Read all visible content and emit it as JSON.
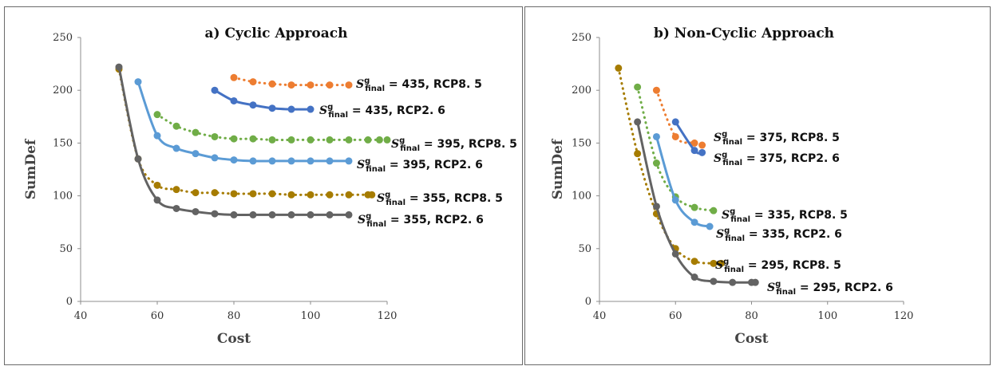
{
  "chart_data": [
    {
      "type": "line",
      "title": "a) Cyclic Approach",
      "xlabel": "Cost",
      "ylabel": "SumDef",
      "xlim": [
        40,
        120
      ],
      "ylim": [
        0,
        250
      ],
      "xticks": [
        40,
        60,
        80,
        100,
        120
      ],
      "yticks": [
        0,
        50,
        100,
        150,
        200,
        250
      ],
      "grid": false,
      "legend": "none",
      "series": [
        {
          "name": "S_final^g = 435, RCP8.5",
          "label_s": "S",
          "label_sup": "g",
          "label_sub": "final",
          "label_rest": " = 435, RCP8. 5",
          "color": "#ED7D31",
          "style": "dotted",
          "x": [
            80,
            85,
            90,
            95,
            100,
            105,
            110
          ],
          "y": [
            212,
            208,
            206,
            205,
            205,
            205,
            205
          ]
        },
        {
          "name": "S_final^g = 435, RCP2.6",
          "label_s": "S",
          "label_sup": "g",
          "label_sub": "final",
          "label_rest": " = 435, RCP2. 6",
          "color": "#4472C4",
          "style": "solid",
          "x": [
            75,
            80,
            85,
            90,
            95,
            100
          ],
          "y": [
            200,
            190,
            186,
            183,
            182,
            182
          ]
        },
        {
          "name": "S_final^g = 395, RCP8.5",
          "label_s": "S",
          "label_sup": "g",
          "label_sub": "final",
          "label_rest": " = 395, RCP8. 5",
          "color": "#70AD47",
          "style": "dotted",
          "x": [
            60,
            65,
            70,
            75,
            80,
            85,
            90,
            95,
            100,
            105,
            110,
            115,
            118,
            120
          ],
          "y": [
            177,
            166,
            160,
            156,
            154,
            154,
            153,
            153,
            153,
            153,
            153,
            153,
            153,
            153
          ]
        },
        {
          "name": "S_final^g = 395, RCP2.6",
          "label_s": "S",
          "label_sup": "g",
          "label_sub": "final",
          "label_rest": " = 395, RCP2. 6",
          "color": "#5B9BD5",
          "style": "solid",
          "x": [
            55,
            60,
            65,
            70,
            75,
            80,
            85,
            90,
            95,
            100,
            105,
            110
          ],
          "y": [
            208,
            157,
            145,
            140,
            136,
            134,
            133,
            133,
            133,
            133,
            133,
            133
          ]
        },
        {
          "name": "S_final^g = 355, RCP8.5",
          "label_s": "S",
          "label_sup": "g",
          "label_sub": "final",
          "label_rest": " = 355, RCP8. 5",
          "color": "#A67C00",
          "style": "dotted",
          "x": [
            50,
            55,
            60,
            65,
            70,
            75,
            80,
            85,
            90,
            95,
            100,
            105,
            110,
            115,
            116
          ],
          "y": [
            220,
            135,
            110,
            106,
            103,
            103,
            102,
            102,
            102,
            101,
            101,
            101,
            101,
            101,
            101
          ]
        },
        {
          "name": "S_final^g = 355, RCP2.6",
          "label_s": "S",
          "label_sup": "g",
          "label_sub": "final",
          "label_rest": " = 355, RCP2. 6",
          "color": "#636363",
          "style": "solid",
          "x": [
            50,
            55,
            60,
            65,
            70,
            75,
            80,
            85,
            90,
            95,
            100,
            105,
            110
          ],
          "y": [
            222,
            135,
            96,
            88,
            85,
            83,
            82,
            82,
            82,
            82,
            82,
            82,
            82
          ]
        }
      ]
    },
    {
      "type": "line",
      "title": "b) Non-Cyclic Approach",
      "xlabel": "Cost",
      "ylabel": "SumDef",
      "xlim": [
        40,
        120
      ],
      "ylim": [
        0,
        250
      ],
      "xticks": [
        40,
        60,
        80,
        100,
        120
      ],
      "yticks": [
        0,
        50,
        100,
        150,
        200,
        250
      ],
      "grid": false,
      "legend": "none",
      "series": [
        {
          "name": "S_final^g = 375, RCP8.5",
          "label_s": "S",
          "label_sup": "g",
          "label_sub": "final",
          "label_rest": " = 375, RCP8. 5",
          "color": "#ED7D31",
          "style": "dotted",
          "x": [
            55,
            60,
            65,
            67
          ],
          "y": [
            200,
            156,
            150,
            148
          ]
        },
        {
          "name": "S_final^g = 375, RCP2.6",
          "label_s": "S",
          "label_sup": "g",
          "label_sub": "final",
          "label_rest": " = 375, RCP2. 6",
          "color": "#4472C4",
          "style": "solid",
          "x": [
            60,
            65,
            67
          ],
          "y": [
            170,
            143,
            141
          ]
        },
        {
          "name": "S_final^g = 335, RCP8.5",
          "label_s": "S",
          "label_sup": "g",
          "label_sub": "final",
          "label_rest": " = 335, RCP8. 5",
          "color": "#70AD47",
          "style": "dotted",
          "x": [
            50,
            55,
            60,
            65,
            70
          ],
          "y": [
            203,
            131,
            99,
            89,
            86
          ]
        },
        {
          "name": "S_final^g = 335, RCP2.6",
          "label_s": "S",
          "label_sup": "g",
          "label_sub": "final",
          "label_rest": " = 335, RCP2. 6",
          "color": "#5B9BD5",
          "style": "solid",
          "x": [
            55,
            60,
            65,
            69
          ],
          "y": [
            156,
            96,
            75,
            71
          ]
        },
        {
          "name": "S_final^g = 295, RCP8.5",
          "label_s": "S",
          "label_sup": "g",
          "label_sub": "final",
          "label_rest": " = 295, RCP8. 5",
          "color": "#A67C00",
          "style": "dotted",
          "x": [
            45,
            50,
            55,
            60,
            65,
            70,
            72
          ],
          "y": [
            221,
            140,
            83,
            50,
            38,
            36,
            36
          ]
        },
        {
          "name": "S_final^g = 295, RCP2.6",
          "label_s": "S",
          "label_sup": "g",
          "label_sub": "final",
          "label_rest": " = 295, RCP2. 6",
          "color": "#636363",
          "style": "solid",
          "x": [
            50,
            55,
            60,
            65,
            70,
            75,
            80,
            81
          ],
          "y": [
            170,
            90,
            45,
            23,
            19,
            18,
            18,
            18
          ]
        }
      ]
    }
  ]
}
